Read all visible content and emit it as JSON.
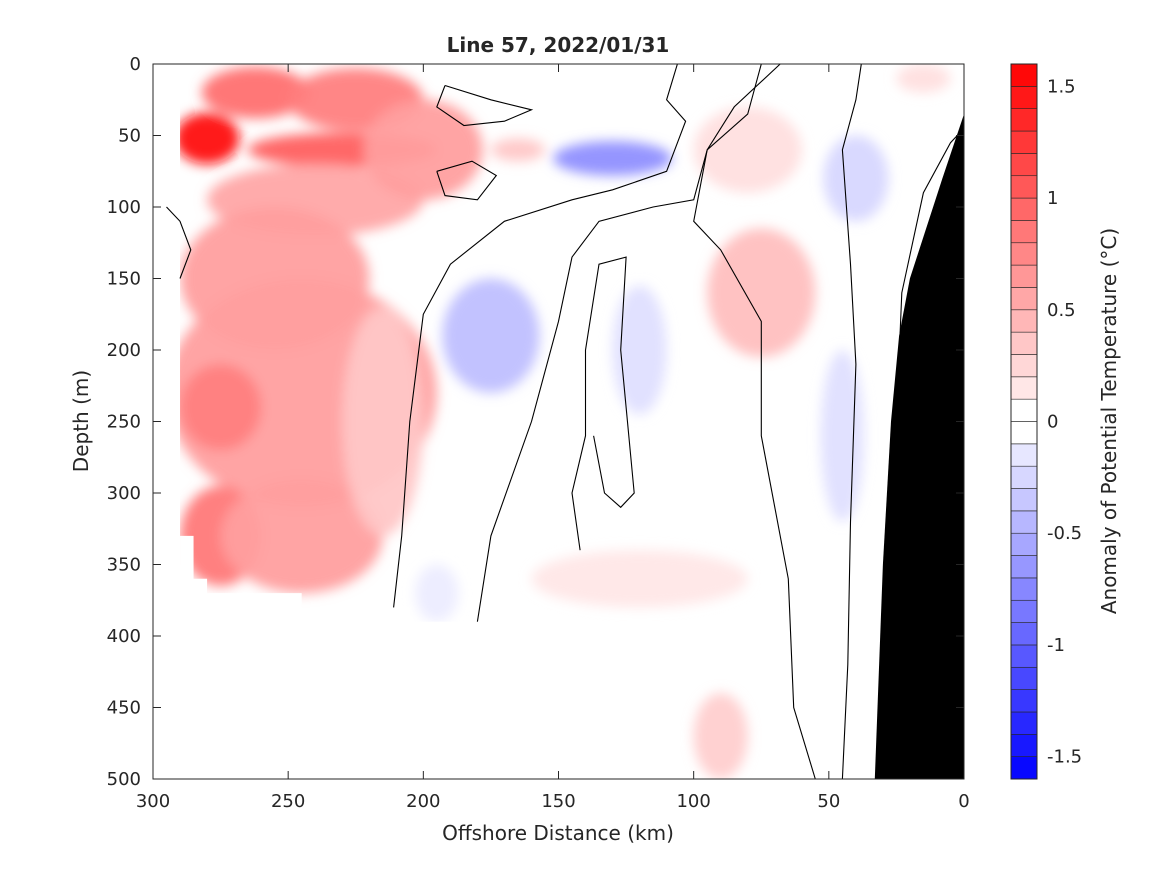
{
  "chart_data": {
    "type": "heatmap",
    "subtype": "filled-contour-section",
    "title": "Line 57, 2022/01/31",
    "xlabel": "Offshore Distance (km)",
    "ylabel": "Depth (m)",
    "colorbar_label": "Anomaly of Potential Temperature (°C)",
    "xlim": [
      300,
      0
    ],
    "x_reversed": true,
    "ylim": [
      0,
      500
    ],
    "y_reversed": true,
    "clim": [
      -1.6,
      1.6
    ],
    "contour_step": 0.1,
    "zero_contour_line": true,
    "grid": false,
    "colormap": "blue-white-red",
    "colors": {
      "positive": "#ff0000",
      "negative": "#0000ff",
      "neutral": "#ffffff",
      "bathymetry": "#000000",
      "contour_line": "#000000"
    },
    "xticks": [
      300,
      250,
      200,
      150,
      100,
      50,
      0
    ],
    "yticks": [
      0,
      50,
      100,
      150,
      200,
      250,
      300,
      350,
      400,
      450,
      500
    ],
    "colorbar_ticks": [
      1.5,
      1,
      0.5,
      0,
      -0.5,
      -1,
      -1.5
    ],
    "data_coverage": {
      "station_bottom_depth": [
        {
          "x": 290,
          "depth": 330
        },
        {
          "x": 285,
          "depth": 360
        },
        {
          "x": 280,
          "depth": 370
        },
        {
          "x": 255,
          "depth": 370
        },
        {
          "x": 245,
          "depth": 380
        },
        {
          "x": 235,
          "depth": 380
        },
        {
          "x": 210,
          "depth": 380
        },
        {
          "x": 205,
          "depth": 390
        },
        {
          "x": 155,
          "depth": 390
        },
        {
          "x": 150,
          "depth": 390
        },
        {
          "x": 105,
          "depth": 390
        },
        {
          "x": 105,
          "depth": 500
        },
        {
          "x": 33,
          "depth": 500
        }
      ]
    },
    "anomaly_blobs": [
      {
        "x": 280,
        "depth": 52,
        "value": 1.55,
        "rx": 12,
        "ry": 18
      },
      {
        "x": 262,
        "depth": 20,
        "value": 0.9,
        "rx": 20,
        "ry": 18
      },
      {
        "x": 225,
        "depth": 25,
        "value": 0.8,
        "rx": 25,
        "ry": 22
      },
      {
        "x": 230,
        "depth": 60,
        "value": 1.0,
        "rx": 35,
        "ry": 12
      },
      {
        "x": 240,
        "depth": 95,
        "value": 0.55,
        "rx": 40,
        "ry": 25
      },
      {
        "x": 255,
        "depth": 150,
        "value": 0.6,
        "rx": 35,
        "ry": 50
      },
      {
        "x": 245,
        "depth": 230,
        "value": 0.6,
        "rx": 50,
        "ry": 80
      },
      {
        "x": 275,
        "depth": 240,
        "value": 0.8,
        "rx": 15,
        "ry": 30
      },
      {
        "x": 275,
        "depth": 330,
        "value": 0.85,
        "rx": 15,
        "ry": 35
      },
      {
        "x": 245,
        "depth": 330,
        "value": 0.6,
        "rx": 30,
        "ry": 40
      },
      {
        "x": 200,
        "depth": 60,
        "value": 0.6,
        "rx": 22,
        "ry": 35
      },
      {
        "x": 215,
        "depth": 250,
        "value": 0.35,
        "rx": 15,
        "ry": 80
      },
      {
        "x": 130,
        "depth": 66,
        "value": -0.7,
        "rx": 22,
        "ry": 12
      },
      {
        "x": 165,
        "depth": 60,
        "value": 0.35,
        "rx": 10,
        "ry": 8
      },
      {
        "x": 175,
        "depth": 190,
        "value": -0.4,
        "rx": 18,
        "ry": 40
      },
      {
        "x": 120,
        "depth": 200,
        "value": -0.2,
        "rx": 10,
        "ry": 45
      },
      {
        "x": 75,
        "depth": 160,
        "value": 0.4,
        "rx": 20,
        "ry": 45
      },
      {
        "x": 80,
        "depth": 60,
        "value": 0.2,
        "rx": 20,
        "ry": 30
      },
      {
        "x": 40,
        "depth": 80,
        "value": -0.25,
        "rx": 12,
        "ry": 30
      },
      {
        "x": 45,
        "depth": 260,
        "value": -0.2,
        "rx": 8,
        "ry": 60
      },
      {
        "x": 90,
        "depth": 470,
        "value": 0.3,
        "rx": 10,
        "ry": 30
      },
      {
        "x": 120,
        "depth": 360,
        "value": 0.15,
        "rx": 40,
        "ry": 20
      },
      {
        "x": 195,
        "depth": 370,
        "value": -0.12,
        "rx": 8,
        "ry": 20
      },
      {
        "x": 15,
        "depth": 10,
        "value": 0.2,
        "rx": 10,
        "ry": 10
      }
    ],
    "bathymetry_polygon": [
      {
        "x": 0,
        "depth": 35
      },
      {
        "x": 8,
        "depth": 80
      },
      {
        "x": 20,
        "depth": 150
      },
      {
        "x": 24,
        "depth": 190
      },
      {
        "x": 27,
        "depth": 250
      },
      {
        "x": 30,
        "depth": 350
      },
      {
        "x": 33,
        "depth": 500
      },
      {
        "x": 0,
        "depth": 500
      }
    ],
    "zero_contours": [
      [
        {
          "x": 211,
          "depth": 380
        },
        {
          "x": 208,
          "depth": 330
        },
        {
          "x": 205,
          "depth": 250
        },
        {
          "x": 200,
          "depth": 175
        },
        {
          "x": 190,
          "depth": 140
        },
        {
          "x": 170,
          "depth": 110
        },
        {
          "x": 145,
          "depth": 95
        },
        {
          "x": 130,
          "depth": 88
        },
        {
          "x": 110,
          "depth": 75
        },
        {
          "x": 103,
          "depth": 40
        },
        {
          "x": 110,
          "depth": 25
        },
        {
          "x": 106,
          "depth": 0
        }
      ],
      [
        {
          "x": 192,
          "depth": 15
        },
        {
          "x": 175,
          "depth": 25
        },
        {
          "x": 160,
          "depth": 32
        },
        {
          "x": 170,
          "depth": 40
        },
        {
          "x": 185,
          "depth": 43
        },
        {
          "x": 195,
          "depth": 30
        },
        {
          "x": 192,
          "depth": 15
        }
      ],
      [
        {
          "x": 195,
          "depth": 75
        },
        {
          "x": 182,
          "depth": 68
        },
        {
          "x": 173,
          "depth": 78
        },
        {
          "x": 180,
          "depth": 95
        },
        {
          "x": 192,
          "depth": 92
        },
        {
          "x": 195,
          "depth": 75
        }
      ],
      [
        {
          "x": 180,
          "depth": 390
        },
        {
          "x": 175,
          "depth": 330
        },
        {
          "x": 160,
          "depth": 250
        },
        {
          "x": 150,
          "depth": 180
        },
        {
          "x": 145,
          "depth": 135
        },
        {
          "x": 135,
          "depth": 110
        },
        {
          "x": 115,
          "depth": 100
        },
        {
          "x": 100,
          "depth": 95
        },
        {
          "x": 95,
          "depth": 60
        },
        {
          "x": 80,
          "depth": 35
        },
        {
          "x": 75,
          "depth": 0
        }
      ],
      [
        {
          "x": 142,
          "depth": 340
        },
        {
          "x": 145,
          "depth": 300
        },
        {
          "x": 140,
          "depth": 260
        },
        {
          "x": 140,
          "depth": 200
        },
        {
          "x": 135,
          "depth": 140
        },
        {
          "x": 125,
          "depth": 135
        },
        {
          "x": 127,
          "depth": 200
        },
        {
          "x": 125,
          "depth": 240
        },
        {
          "x": 122,
          "depth": 300
        },
        {
          "x": 127,
          "depth": 310
        },
        {
          "x": 133,
          "depth": 300
        },
        {
          "x": 137,
          "depth": 260
        }
      ],
      [
        {
          "x": 55,
          "depth": 500
        },
        {
          "x": 63,
          "depth": 450
        },
        {
          "x": 65,
          "depth": 360
        },
        {
          "x": 75,
          "depth": 260
        },
        {
          "x": 75,
          "depth": 180
        },
        {
          "x": 90,
          "depth": 130
        },
        {
          "x": 100,
          "depth": 110
        },
        {
          "x": 95,
          "depth": 60
        },
        {
          "x": 85,
          "depth": 30
        },
        {
          "x": 68,
          "depth": 0
        }
      ],
      [
        {
          "x": 45,
          "depth": 500
        },
        {
          "x": 43,
          "depth": 420
        },
        {
          "x": 42,
          "depth": 320
        },
        {
          "x": 40,
          "depth": 210
        },
        {
          "x": 42,
          "depth": 140
        },
        {
          "x": 45,
          "depth": 60
        },
        {
          "x": 40,
          "depth": 25
        },
        {
          "x": 38,
          "depth": 0
        }
      ],
      [
        {
          "x": 30,
          "depth": 500
        },
        {
          "x": 28,
          "depth": 380
        },
        {
          "x": 25,
          "depth": 250
        },
        {
          "x": 23,
          "depth": 160
        },
        {
          "x": 15,
          "depth": 90
        },
        {
          "x": 5,
          "depth": 55
        },
        {
          "x": 0,
          "depth": 45
        }
      ],
      [
        {
          "x": 295,
          "depth": 100
        },
        {
          "x": 290,
          "depth": 110
        },
        {
          "x": 286,
          "depth": 130
        },
        {
          "x": 290,
          "depth": 150
        }
      ]
    ]
  }
}
